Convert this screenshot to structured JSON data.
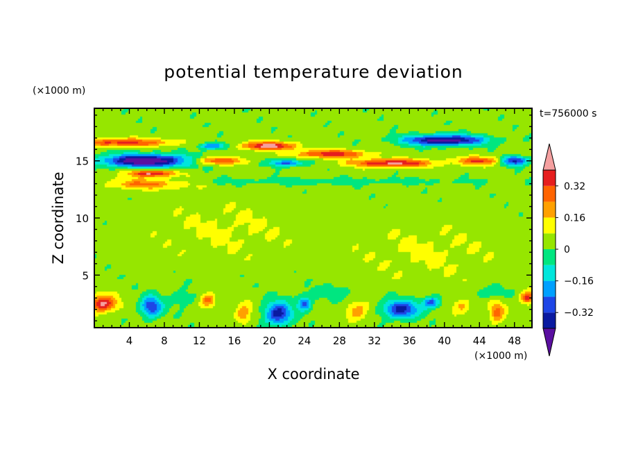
{
  "chart_data": {
    "type": "heatmap",
    "title": "potential temperature deviation",
    "xlabel": "X coordinate",
    "ylabel": "Z coordinate",
    "x_unit": "(×1000 m)",
    "y_unit": "(×1000 m)",
    "time_label": "t=756000 s",
    "xlim": [
      0,
      50
    ],
    "ylim": [
      0.4,
      19.6
    ],
    "x_ticks": [
      4,
      8,
      12,
      16,
      20,
      24,
      28,
      32,
      36,
      40,
      44,
      48
    ],
    "y_ticks": [
      5,
      10,
      15
    ],
    "colorbar": {
      "tick_labels": [
        "0.32",
        "0.16",
        "0",
        "−0.16",
        "−0.32"
      ],
      "tick_values": [
        0.32,
        0.16,
        0,
        -0.16,
        -0.32
      ],
      "levels": [
        -0.4,
        -0.32,
        -0.24,
        -0.16,
        -0.08,
        0,
        0.08,
        0.16,
        0.24,
        0.32,
        0.4
      ],
      "colors": [
        "#5a0fa0",
        "#0a1aa0",
        "#1e46e6",
        "#00a0ff",
        "#00e6dc",
        "#00e680",
        "#96e600",
        "#ffff00",
        "#ffa000",
        "#ff6400",
        "#e61e1e",
        "#f5a0a0"
      ]
    },
    "features": [
      {
        "x": 6,
        "z": 15.0,
        "sx": 5.0,
        "sz": 0.55,
        "v": -0.55
      },
      {
        "x": 3,
        "z": 16.6,
        "sx": 6.0,
        "sz": 0.35,
        "v": 0.32
      },
      {
        "x": 6,
        "z": 13.0,
        "sx": 4.5,
        "sz": 0.45,
        "v": 0.24
      },
      {
        "x": 6.5,
        "z": 13.9,
        "sx": 2.5,
        "sz": 0.3,
        "v": 0.4
      },
      {
        "x": 14,
        "z": 15.0,
        "sx": 3.0,
        "sz": 0.35,
        "v": 0.3
      },
      {
        "x": 13.5,
        "z": 16.3,
        "sx": 1.5,
        "sz": 0.3,
        "v": -0.3
      },
      {
        "x": 20,
        "z": 16.3,
        "sx": 3.0,
        "sz": 0.35,
        "v": 0.42
      },
      {
        "x": 22,
        "z": 14.8,
        "sx": 2.0,
        "sz": 0.3,
        "v": -0.3
      },
      {
        "x": 27,
        "z": 15.6,
        "sx": 4.0,
        "sz": 0.35,
        "v": 0.35
      },
      {
        "x": 34,
        "z": 14.8,
        "sx": 4.5,
        "sz": 0.35,
        "v": 0.4
      },
      {
        "x": 40,
        "z": 16.8,
        "sx": 4.5,
        "sz": 0.45,
        "v": -0.5
      },
      {
        "x": 44,
        "z": 15.0,
        "sx": 2.5,
        "sz": 0.35,
        "v": 0.3
      },
      {
        "x": 48,
        "z": 15.0,
        "sx": 1.5,
        "sz": 0.4,
        "v": -0.4
      },
      {
        "x": 25,
        "z": 13.2,
        "sx": 20.0,
        "sz": 0.3,
        "v": -0.08
      },
      {
        "x": 15,
        "z": 9.0,
        "sx": 8.0,
        "sz": 2.5,
        "v": 0.06
      },
      {
        "x": 38,
        "z": 7.0,
        "sx": 8.0,
        "sz": 2.5,
        "v": 0.06
      },
      {
        "x": 1,
        "z": 2.5,
        "sx": 1.5,
        "sz": 0.7,
        "v": 0.4
      },
      {
        "x": 6.5,
        "z": 2.2,
        "sx": 1.2,
        "sz": 0.9,
        "v": -0.35
      },
      {
        "x": 13,
        "z": 2.8,
        "sx": 0.8,
        "sz": 0.6,
        "v": 0.25
      },
      {
        "x": 17,
        "z": 1.6,
        "sx": 0.9,
        "sz": 0.9,
        "v": 0.2
      },
      {
        "x": 21,
        "z": 1.6,
        "sx": 1.5,
        "sz": 1.0,
        "v": -0.4
      },
      {
        "x": 24,
        "z": 2.5,
        "sx": 0.8,
        "sz": 0.6,
        "v": -0.3
      },
      {
        "x": 30,
        "z": 1.8,
        "sx": 1.2,
        "sz": 0.8,
        "v": 0.2
      },
      {
        "x": 35,
        "z": 2.0,
        "sx": 2.0,
        "sz": 0.8,
        "v": -0.38
      },
      {
        "x": 38.5,
        "z": 2.6,
        "sx": 1.0,
        "sz": 0.5,
        "v": -0.3
      },
      {
        "x": 42,
        "z": 2.3,
        "sx": 1.0,
        "sz": 0.7,
        "v": 0.15
      },
      {
        "x": 46,
        "z": 1.7,
        "sx": 0.8,
        "sz": 0.9,
        "v": 0.25
      },
      {
        "x": 49.5,
        "z": 3.0,
        "sx": 0.8,
        "sz": 0.5,
        "v": 0.35
      },
      {
        "x": 10,
        "z": 3.0,
        "sx": 1.5,
        "sz": 0.8,
        "v": -0.08
      },
      {
        "x": 27,
        "z": 3.5,
        "sx": 3.0,
        "sz": 0.6,
        "v": -0.08
      },
      {
        "x": 45,
        "z": 3.5,
        "sx": 2.0,
        "sz": 0.5,
        "v": -0.1
      }
    ]
  }
}
